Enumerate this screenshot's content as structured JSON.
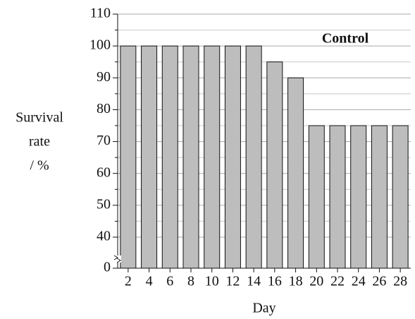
{
  "chart_data": {
    "type": "bar",
    "annotation": "Control",
    "xlabel": "Day",
    "ylabel": [
      "Survival",
      "rate",
      "/ %"
    ],
    "categories": [
      "2",
      "4",
      "6",
      "8",
      "10",
      "12",
      "14",
      "16",
      "18",
      "20",
      "22",
      "24",
      "26",
      "28"
    ],
    "values": [
      100,
      100,
      100,
      100,
      100,
      100,
      100,
      95,
      90,
      75,
      75,
      75,
      75,
      75
    ],
    "color": "#bdbdbd",
    "ylim": [
      0,
      110
    ],
    "axis_break": [
      0,
      40
    ],
    "yticks": [
      0,
      40,
      50,
      60,
      70,
      80,
      90,
      100,
      110
    ],
    "grid": true
  }
}
